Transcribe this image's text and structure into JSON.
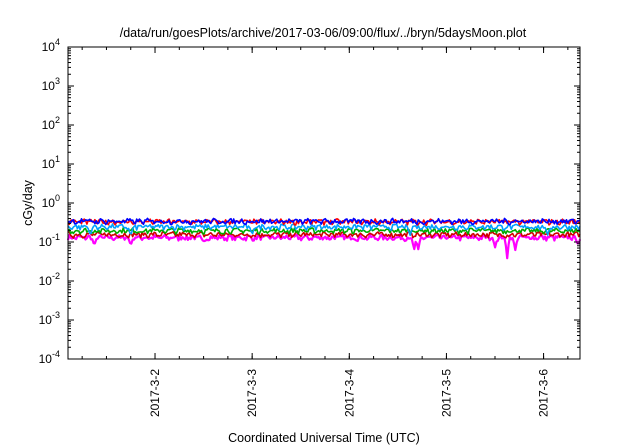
{
  "chart_data": {
    "type": "line",
    "title": "/data/run/goesPlots/archive/2017-03-06/09:00/flux/../bryn/5daysMoon.plot",
    "xlabel": "Coordinated Universal Time (UTC)",
    "ylabel": "cGy/day",
    "yscale": "log",
    "ylim": [
      0.0001,
      10000
    ],
    "xlim": [
      "2017-03-01 02:30",
      "2017-03-06 09:00"
    ],
    "grid": false,
    "legend": "none",
    "y_ticks": [
      {
        "base": "10",
        "exp": "4",
        "value": 10000
      },
      {
        "base": "10",
        "exp": "3",
        "value": 1000
      },
      {
        "base": "10",
        "exp": "2",
        "value": 100
      },
      {
        "base": "10",
        "exp": "1",
        "value": 10
      },
      {
        "base": "10",
        "exp": "0",
        "value": 1
      },
      {
        "base": "10",
        "exp": "-1",
        "value": 0.1
      },
      {
        "base": "10",
        "exp": "-2",
        "value": 0.01
      },
      {
        "base": "10",
        "exp": "-3",
        "value": 0.001
      },
      {
        "base": "10",
        "exp": "-4",
        "value": 0.0001
      }
    ],
    "x_ticks": [
      "2017-3-2",
      "2017-3-3",
      "2017-3-4",
      "2017-3-5",
      "2017-3-6"
    ],
    "series": [
      {
        "color": "#ff00ff",
        "base": 0.13,
        "dips": [
          [
            "2017-03-01 09:00",
            0.08
          ],
          [
            "2017-03-01 18:00",
            0.08
          ],
          [
            "2017-03-02 12:00",
            0.1
          ],
          [
            "2017-03-04 16:00",
            0.06
          ],
          [
            "2017-03-04 17:00",
            0.06
          ],
          [
            "2017-03-05 12:00",
            0.07
          ],
          [
            "2017-03-05 15:00",
            0.035
          ],
          [
            "2017-03-05 17:00",
            0.06
          ],
          [
            "2017-03-06 08:30",
            0.08
          ]
        ]
      },
      {
        "color": "#d00000",
        "base": 0.155,
        "dips": []
      },
      {
        "color": "#00aa00",
        "base": 0.195,
        "dips": []
      },
      {
        "color": "#00a0ff",
        "base": 0.245,
        "dips": [
          [
            "2017-03-01 08:00",
            0.14
          ],
          [
            "2017-03-01 18:00",
            0.14
          ],
          [
            "2017-03-03 00:00",
            0.15
          ],
          [
            "2017-03-04 15:00",
            0.14
          ],
          [
            "2017-03-06 01:00",
            0.15
          ]
        ]
      },
      {
        "color": "#ff0000",
        "base": 0.33,
        "dips": []
      },
      {
        "color": "#0000ff",
        "base": 0.34,
        "dips": []
      }
    ]
  }
}
